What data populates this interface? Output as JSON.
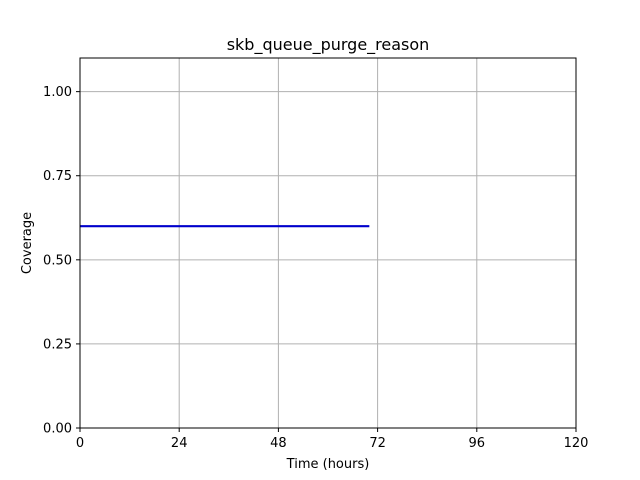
{
  "chart_data": {
    "type": "line",
    "title": "skb_queue_purge_reason",
    "xlabel": "Time (hours)",
    "ylabel": "Coverage",
    "xlim": [
      0,
      120
    ],
    "ylim": [
      0,
      1.1
    ],
    "xticks": [
      0,
      24,
      48,
      72,
      96,
      120
    ],
    "yticks": [
      0.0,
      0.25,
      0.5,
      0.75,
      1.0
    ],
    "xtick_labels": [
      "0",
      "24",
      "48",
      "72",
      "96",
      "120"
    ],
    "ytick_labels": [
      "0.00",
      "0.25",
      "0.50",
      "0.75",
      "1.00"
    ],
    "grid": true,
    "series": [
      {
        "color": "#0000cc",
        "x": [
          0,
          70
        ],
        "y": [
          0.6,
          0.6
        ]
      }
    ]
  }
}
